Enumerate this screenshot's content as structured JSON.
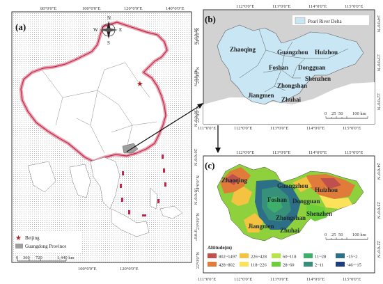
{
  "panel_a": {
    "label": "(a)",
    "top_ticks": [
      "80°0'0\"E",
      "100°0'0\"E",
      "120°0'0\"E",
      "140°0'0\"E"
    ],
    "bottom_ticks": [
      "100°0'0\"E",
      "120°0'0\"E"
    ],
    "right_ticks": [
      "50°0'0\"N",
      "40°0'0\"N",
      "30°0'0\"N",
      "20°0'0\"N",
      "10°0'0\"N",
      "0°0'0\""
    ],
    "compass": {
      "n": "N",
      "s": "S",
      "e": "E",
      "w": "W"
    },
    "legend": {
      "beijing": "Beijing",
      "guangdong": "Guangdong Province"
    },
    "scale": {
      "ticks": [
        "0",
        "360",
        "720",
        "1,440 km"
      ]
    }
  },
  "panel_b": {
    "label": "(b)",
    "legend": "Pearl River Delta",
    "top_ticks": [
      "112°0'0\"E",
      "113°0'0\"E",
      "114°0'0\"E",
      "115°0'0\"E"
    ],
    "bottom_ticks": [
      "111°0'0\"E",
      "112°0'0\"E",
      "113°0'0\"E",
      "114°0'0\"E",
      "115°0'0\"E"
    ],
    "left_ticks": [
      "24°0'0\"N",
      "23°0'0\"N",
      "22°0'0\"N"
    ],
    "right_ticks": [
      "24°0'0\"N",
      "23°0'0\"N",
      "22°0'0\"N"
    ],
    "cities": [
      "Zhaoqing",
      "Guangzhou",
      "Huizhou",
      "Foshan",
      "Dongguan",
      "Shenzhen",
      "Zhongshan",
      "Jiangmen",
      "Zhuhai"
    ],
    "scale": {
      "ticks": [
        "0",
        "25",
        "50",
        "100 km"
      ]
    }
  },
  "panel_c": {
    "label": "(c)",
    "top_ticks": [
      "112°0'0\"E",
      "113°0'0\"E",
      "114°0'0\"E",
      "115°0'0\"E"
    ],
    "bottom_ticks": [
      "111°0'0\"E",
      "112°0'0\"E",
      "113°0'0\"E",
      "114°0'0\"E",
      "115°0'0\"E"
    ],
    "left_ticks": [
      "24°0'0\"N",
      "23°0'0\"N",
      "22°0'0\"N"
    ],
    "right_ticks": [
      "24°0'0\"N",
      "23°0'0\"N",
      "22°0'0\"N"
    ],
    "cities": [
      "Zhaoqing",
      "Guangzhou",
      "Huizhou",
      "Foshan",
      "Dongguan",
      "Shenzhen",
      "Zhongshan",
      "Jiangmen",
      "Zhuhai"
    ],
    "scale": {
      "ticks": [
        "0",
        "25",
        "50",
        "100 km"
      ]
    },
    "legend_title": "Altitude(m)",
    "altitude_classes": [
      {
        "range": "802~1497",
        "color": "#c0504d"
      },
      {
        "range": "226~428",
        "color": "#f5c342"
      },
      {
        "range": "60~118",
        "color": "#b8e34a"
      },
      {
        "range": "11~28",
        "color": "#3fae6b"
      },
      {
        "range": "-15~2",
        "color": "#2d6f86"
      },
      {
        "range": "428~802",
        "color": "#e07b39"
      },
      {
        "range": "118~226",
        "color": "#fbe25a"
      },
      {
        "range": "28~60",
        "color": "#6ccf3a"
      },
      {
        "range": "2~11",
        "color": "#36907a"
      },
      {
        "range": "-46~-15",
        "color": "#1f3f7a"
      }
    ]
  }
}
